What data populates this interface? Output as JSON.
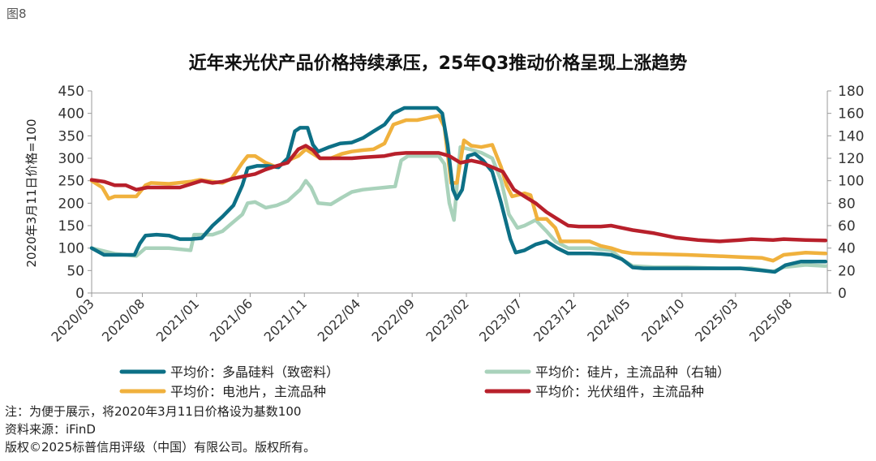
{
  "figure_label": "图8",
  "title": "近年来光伏产品价格持续承压，25年Q3推动价格呈现上涨趋势",
  "notes": {
    "note": "注：为便于展示，将2020年3月11日价格设为基数100",
    "source": "资料来源：iFinD",
    "copyright": "版权©2025标普信用评级（中国）有限公司。版权所有。"
  },
  "chart_data": {
    "type": "line",
    "ylabel": "2020年3月11日价格=100",
    "ylim_left": [
      0,
      450
    ],
    "ylim_right": [
      0,
      180
    ],
    "yticks_left": [
      "0",
      "50",
      "100",
      "150",
      "200",
      "250",
      "300",
      "350",
      "400",
      "450"
    ],
    "yticks_right": [
      "0",
      "20",
      "40",
      "60",
      "80",
      "100",
      "120",
      "140",
      "160",
      "180"
    ],
    "x_tick_labels": [
      "2020/03",
      "2020/08",
      "2021/01",
      "2021/06",
      "2021/11",
      "2022/04",
      "2022/09",
      "2023/02",
      "2023/07",
      "2023/12",
      "2024/05",
      "2024/10",
      "2025/03",
      "2025/08"
    ],
    "x_range": [
      "2020-03-11",
      "2025-11-15"
    ],
    "grid": false,
    "legend_position": "bottom",
    "series": [
      {
        "name": "平均价：多晶硅料（致密料）",
        "axis": "left",
        "color": "#0d7086",
        "points": [
          [
            "2020-03-11",
            100
          ],
          [
            "2020-04-15",
            85
          ],
          [
            "2020-06-15",
            85
          ],
          [
            "2020-07-10",
            85
          ],
          [
            "2020-07-25",
            110
          ],
          [
            "2020-08-10",
            128
          ],
          [
            "2020-09-10",
            130
          ],
          [
            "2020-10-15",
            128
          ],
          [
            "2020-11-15",
            120
          ],
          [
            "2020-12-15",
            120
          ],
          [
            "2021-01-15",
            122
          ],
          [
            "2021-02-15",
            150
          ],
          [
            "2021-03-15",
            170
          ],
          [
            "2021-04-15",
            195
          ],
          [
            "2021-05-10",
            240
          ],
          [
            "2021-05-25",
            278
          ],
          [
            "2021-06-20",
            283
          ],
          [
            "2021-07-20",
            283
          ],
          [
            "2021-08-20",
            280
          ],
          [
            "2021-09-15",
            300
          ],
          [
            "2021-10-05",
            360
          ],
          [
            "2021-10-20",
            368
          ],
          [
            "2021-11-10",
            368
          ],
          [
            "2021-11-25",
            330
          ],
          [
            "2021-12-10",
            315
          ],
          [
            "2022-01-10",
            325
          ],
          [
            "2022-02-10",
            333
          ],
          [
            "2022-03-15",
            335
          ],
          [
            "2022-04-15",
            345
          ],
          [
            "2022-05-15",
            360
          ],
          [
            "2022-06-15",
            375
          ],
          [
            "2022-07-10",
            400
          ],
          [
            "2022-08-10",
            412
          ],
          [
            "2022-09-10",
            412
          ],
          [
            "2022-10-15",
            412
          ],
          [
            "2022-11-10",
            412
          ],
          [
            "2022-11-25",
            400
          ],
          [
            "2022-12-10",
            330
          ],
          [
            "2022-12-25",
            230
          ],
          [
            "2023-01-05",
            210
          ],
          [
            "2023-01-20",
            230
          ],
          [
            "2023-02-05",
            305
          ],
          [
            "2023-02-25",
            310
          ],
          [
            "2023-03-20",
            295
          ],
          [
            "2023-04-15",
            270
          ],
          [
            "2023-05-10",
            200
          ],
          [
            "2023-06-05",
            120
          ],
          [
            "2023-06-20",
            90
          ],
          [
            "2023-07-15",
            95
          ],
          [
            "2023-08-15",
            108
          ],
          [
            "2023-09-15",
            115
          ],
          [
            "2023-10-15",
            100
          ],
          [
            "2023-11-15",
            88
          ],
          [
            "2023-12-15",
            88
          ],
          [
            "2024-01-15",
            88
          ],
          [
            "2024-02-15",
            87
          ],
          [
            "2024-03-15",
            85
          ],
          [
            "2024-04-15",
            75
          ],
          [
            "2024-05-15",
            57
          ],
          [
            "2024-06-15",
            55
          ],
          [
            "2024-07-15",
            55
          ],
          [
            "2024-10-15",
            55
          ],
          [
            "2024-12-15",
            55
          ],
          [
            "2025-03-15",
            55
          ],
          [
            "2025-05-15",
            50
          ],
          [
            "2025-06-20",
            47
          ],
          [
            "2025-07-20",
            62
          ],
          [
            "2025-09-01",
            70
          ],
          [
            "2025-11-10",
            70
          ]
        ]
      },
      {
        "name": "平均价：电池片，主流品种",
        "axis": "left",
        "color": "#f0b13d",
        "points": [
          [
            "2020-03-11",
            250
          ],
          [
            "2020-04-10",
            235
          ],
          [
            "2020-04-28",
            210
          ],
          [
            "2020-05-15",
            215
          ],
          [
            "2020-07-15",
            215
          ],
          [
            "2020-08-10",
            240
          ],
          [
            "2020-08-25",
            245
          ],
          [
            "2020-10-15",
            243
          ],
          [
            "2020-12-15",
            248
          ],
          [
            "2021-01-10",
            252
          ],
          [
            "2021-02-15",
            248
          ],
          [
            "2021-03-15",
            245
          ],
          [
            "2021-04-10",
            255
          ],
          [
            "2021-05-10",
            290
          ],
          [
            "2021-05-25",
            305
          ],
          [
            "2021-06-15",
            305
          ],
          [
            "2021-07-15",
            290
          ],
          [
            "2021-08-15",
            280
          ],
          [
            "2021-09-15",
            295
          ],
          [
            "2021-10-15",
            305
          ],
          [
            "2021-11-05",
            320
          ],
          [
            "2021-11-25",
            310
          ],
          [
            "2021-12-15",
            300
          ],
          [
            "2022-01-15",
            300
          ],
          [
            "2022-02-15",
            310
          ],
          [
            "2022-03-15",
            315
          ],
          [
            "2022-04-15",
            318
          ],
          [
            "2022-05-15",
            320
          ],
          [
            "2022-06-15",
            333
          ],
          [
            "2022-07-10",
            375
          ],
          [
            "2022-08-15",
            385
          ],
          [
            "2022-09-15",
            385
          ],
          [
            "2022-10-15",
            390
          ],
          [
            "2022-11-15",
            395
          ],
          [
            "2022-12-01",
            370
          ],
          [
            "2022-12-20",
            245
          ],
          [
            "2023-01-05",
            245
          ],
          [
            "2023-01-25",
            340
          ],
          [
            "2023-02-15",
            328
          ],
          [
            "2023-03-15",
            325
          ],
          [
            "2023-04-15",
            330
          ],
          [
            "2023-05-10",
            280
          ],
          [
            "2023-05-25",
            240
          ],
          [
            "2023-06-10",
            215
          ],
          [
            "2023-07-15",
            222
          ],
          [
            "2023-08-01",
            218
          ],
          [
            "2023-08-20",
            165
          ],
          [
            "2023-09-15",
            165
          ],
          [
            "2023-10-10",
            145
          ],
          [
            "2023-10-25",
            115
          ],
          [
            "2023-11-15",
            115
          ],
          [
            "2024-01-15",
            115
          ],
          [
            "2024-02-15",
            105
          ],
          [
            "2024-03-15",
            100
          ],
          [
            "2024-04-15",
            92
          ],
          [
            "2024-05-15",
            88
          ],
          [
            "2024-07-15",
            87
          ],
          [
            "2024-10-15",
            85
          ],
          [
            "2025-01-15",
            82
          ],
          [
            "2025-03-15",
            80
          ],
          [
            "2025-05-15",
            78
          ],
          [
            "2025-06-15",
            72
          ],
          [
            "2025-07-15",
            85
          ],
          [
            "2025-09-15",
            90
          ],
          [
            "2025-11-10",
            88
          ]
        ]
      },
      {
        "name": "平均价：硅片，主流品种（右轴）",
        "axis": "right",
        "color": "#a9d2bb",
        "points": [
          [
            "2020-03-11",
            40
          ],
          [
            "2020-05-15",
            35
          ],
          [
            "2020-07-15",
            33
          ],
          [
            "2020-08-10",
            40
          ],
          [
            "2020-09-15",
            40
          ],
          [
            "2020-10-15",
            40
          ],
          [
            "2020-12-15",
            38
          ],
          [
            "2020-12-25",
            52
          ],
          [
            "2021-02-15",
            52
          ],
          [
            "2021-03-15",
            55
          ],
          [
            "2021-04-10",
            62
          ],
          [
            "2021-05-10",
            70
          ],
          [
            "2021-05-25",
            80
          ],
          [
            "2021-06-15",
            81
          ],
          [
            "2021-07-15",
            76
          ],
          [
            "2021-08-15",
            78
          ],
          [
            "2021-09-15",
            82
          ],
          [
            "2021-10-20",
            92
          ],
          [
            "2021-11-05",
            100
          ],
          [
            "2021-11-20",
            94
          ],
          [
            "2021-12-10",
            80
          ],
          [
            "2022-01-15",
            79
          ],
          [
            "2022-02-15",
            85
          ],
          [
            "2022-03-15",
            90
          ],
          [
            "2022-04-15",
            92
          ],
          [
            "2022-05-15",
            93
          ],
          [
            "2022-06-15",
            94
          ],
          [
            "2022-07-15",
            95
          ],
          [
            "2022-08-01",
            118
          ],
          [
            "2022-08-20",
            122
          ],
          [
            "2022-09-15",
            122
          ],
          [
            "2022-10-15",
            122
          ],
          [
            "2022-11-15",
            122
          ],
          [
            "2022-12-01",
            115
          ],
          [
            "2022-12-15",
            80
          ],
          [
            "2022-12-28",
            65
          ],
          [
            "2023-01-15",
            130
          ],
          [
            "2023-02-10",
            128
          ],
          [
            "2023-03-15",
            125
          ],
          [
            "2023-04-15",
            120
          ],
          [
            "2023-05-10",
            100
          ],
          [
            "2023-06-01",
            70
          ],
          [
            "2023-06-25",
            58
          ],
          [
            "2023-07-15",
            60
          ],
          [
            "2023-08-15",
            65
          ],
          [
            "2023-09-15",
            55
          ],
          [
            "2023-10-10",
            46
          ],
          [
            "2023-11-15",
            40
          ],
          [
            "2024-01-15",
            40
          ],
          [
            "2024-03-15",
            38
          ],
          [
            "2024-04-15",
            30
          ],
          [
            "2024-05-15",
            24
          ],
          [
            "2024-07-15",
            23
          ],
          [
            "2024-10-15",
            23
          ],
          [
            "2025-01-15",
            22
          ],
          [
            "2025-04-15",
            22
          ],
          [
            "2025-06-15",
            19
          ],
          [
            "2025-07-15",
            23
          ],
          [
            "2025-09-15",
            25
          ],
          [
            "2025-11-10",
            24
          ]
        ]
      },
      {
        "name": "平均价：光伏组件，主流品种",
        "axis": "left",
        "color": "#b8202b",
        "points": [
          [
            "2020-03-11",
            252
          ],
          [
            "2020-04-15",
            248
          ],
          [
            "2020-05-15",
            240
          ],
          [
            "2020-06-15",
            240
          ],
          [
            "2020-07-15",
            230
          ],
          [
            "2020-08-15",
            235
          ],
          [
            "2020-09-15",
            235
          ],
          [
            "2020-10-15",
            235
          ],
          [
            "2020-11-15",
            235
          ],
          [
            "2021-01-15",
            250
          ],
          [
            "2021-02-15",
            245
          ],
          [
            "2021-03-15",
            248
          ],
          [
            "2021-04-15",
            255
          ],
          [
            "2021-05-15",
            260
          ],
          [
            "2021-06-15",
            265
          ],
          [
            "2021-07-15",
            275
          ],
          [
            "2021-08-15",
            283
          ],
          [
            "2021-09-15",
            290
          ],
          [
            "2021-10-15",
            320
          ],
          [
            "2021-11-05",
            328
          ],
          [
            "2021-11-25",
            318
          ],
          [
            "2021-12-15",
            300
          ],
          [
            "2022-01-15",
            300
          ],
          [
            "2022-03-15",
            300
          ],
          [
            "2022-04-15",
            302
          ],
          [
            "2022-06-15",
            305
          ],
          [
            "2022-07-15",
            310
          ],
          [
            "2022-08-15",
            312
          ],
          [
            "2022-09-15",
            312
          ],
          [
            "2022-11-15",
            312
          ],
          [
            "2022-12-15",
            305
          ],
          [
            "2023-01-15",
            290
          ],
          [
            "2023-02-15",
            295
          ],
          [
            "2023-03-15",
            290
          ],
          [
            "2023-04-15",
            280
          ],
          [
            "2023-05-15",
            270
          ],
          [
            "2023-06-15",
            230
          ],
          [
            "2023-07-15",
            215
          ],
          [
            "2023-08-15",
            200
          ],
          [
            "2023-09-15",
            180
          ],
          [
            "2023-10-15",
            165
          ],
          [
            "2023-11-15",
            150
          ],
          [
            "2023-12-15",
            148
          ],
          [
            "2024-01-15",
            148
          ],
          [
            "2024-02-15",
            148
          ],
          [
            "2024-03-15",
            150
          ],
          [
            "2024-04-15",
            145
          ],
          [
            "2024-05-15",
            140
          ],
          [
            "2024-07-15",
            133
          ],
          [
            "2024-09-15",
            123
          ],
          [
            "2024-11-15",
            118
          ],
          [
            "2025-01-15",
            115
          ],
          [
            "2025-03-15",
            118
          ],
          [
            "2025-04-15",
            120
          ],
          [
            "2025-06-15",
            118
          ],
          [
            "2025-07-15",
            120
          ],
          [
            "2025-09-15",
            118
          ],
          [
            "2025-11-10",
            117
          ]
        ]
      }
    ]
  }
}
